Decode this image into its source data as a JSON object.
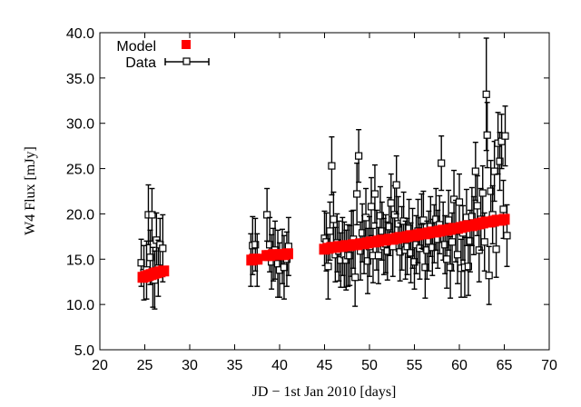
{
  "chart_data": {
    "type": "scatter",
    "title": "",
    "xlabel": "JD − 1st Jan 2010 [days]",
    "ylabel": "W4 Flux [mJy]",
    "xlim": [
      20,
      70
    ],
    "ylim": [
      5.0,
      40.0
    ],
    "x_ticks": [
      "20",
      "25",
      "30",
      "35",
      "40",
      "45",
      "50",
      "55",
      "60",
      "65",
      "70"
    ],
    "y_ticks": [
      "5.0",
      "10.0",
      "15.0",
      "20.0",
      "25.0",
      "30.0",
      "35.0",
      "40.0"
    ],
    "grid": false,
    "legend_position": "top-left",
    "series": [
      {
        "name": "Model",
        "marker": "filled-square",
        "color": "#ff0000",
        "points": [
          [
            24.8,
            13.0
          ],
          [
            25.1,
            13.1
          ],
          [
            25.4,
            13.2
          ],
          [
            25.7,
            13.3
          ],
          [
            26.0,
            13.4
          ],
          [
            26.3,
            13.5
          ],
          [
            26.7,
            13.6
          ],
          [
            27.1,
            13.7
          ],
          [
            36.9,
            14.9
          ],
          [
            37.2,
            15.0
          ],
          [
            37.5,
            15.0
          ],
          [
            38.6,
            15.4
          ],
          [
            38.9,
            15.4
          ],
          [
            39.3,
            15.5
          ],
          [
            39.7,
            15.5
          ],
          [
            40.1,
            15.5
          ],
          [
            40.5,
            15.5
          ],
          [
            40.9,
            15.6
          ],
          [
            45.0,
            16.1
          ],
          [
            45.4,
            16.2
          ],
          [
            45.8,
            16.3
          ],
          [
            46.2,
            16.3
          ],
          [
            46.6,
            16.4
          ],
          [
            47.0,
            16.4
          ],
          [
            47.4,
            16.5
          ],
          [
            47.8,
            16.5
          ],
          [
            48.2,
            16.6
          ],
          [
            48.6,
            16.6
          ],
          [
            49.0,
            16.7
          ],
          [
            49.4,
            16.7
          ],
          [
            49.8,
            16.8
          ],
          [
            50.2,
            16.9
          ],
          [
            50.6,
            16.9
          ],
          [
            51.0,
            17.0
          ],
          [
            51.4,
            17.1
          ],
          [
            51.8,
            17.1
          ],
          [
            52.2,
            17.2
          ],
          [
            52.6,
            17.2
          ],
          [
            53.0,
            17.3
          ],
          [
            53.4,
            17.4
          ],
          [
            53.8,
            17.4
          ],
          [
            54.2,
            17.5
          ],
          [
            54.6,
            17.6
          ],
          [
            55.0,
            17.6
          ],
          [
            55.4,
            17.7
          ],
          [
            55.8,
            17.8
          ],
          [
            56.2,
            17.8
          ],
          [
            56.6,
            17.9
          ],
          [
            57.0,
            18.0
          ],
          [
            57.4,
            18.0
          ],
          [
            57.8,
            18.1
          ],
          [
            58.2,
            18.2
          ],
          [
            58.6,
            18.2
          ],
          [
            59.0,
            18.3
          ],
          [
            59.4,
            18.4
          ],
          [
            59.8,
            18.4
          ],
          [
            60.2,
            18.5
          ],
          [
            60.6,
            18.6
          ],
          [
            61.0,
            18.7
          ],
          [
            61.4,
            18.7
          ],
          [
            61.8,
            18.8
          ],
          [
            62.2,
            18.9
          ],
          [
            62.6,
            19.0
          ],
          [
            63.0,
            19.1
          ],
          [
            63.4,
            19.1
          ],
          [
            63.8,
            19.2
          ],
          [
            64.2,
            19.3
          ],
          [
            64.6,
            19.3
          ],
          [
            65.0,
            19.4
          ]
        ]
      },
      {
        "name": "Data",
        "marker": "open-square",
        "color": "#000000",
        "points": [
          [
            24.6,
            14.6,
            2.6
          ],
          [
            24.9,
            13.5,
            3.0
          ],
          [
            25.2,
            13.8,
            3.2
          ],
          [
            25.4,
            19.9,
            3.3
          ],
          [
            25.6,
            15.2,
            3.0
          ],
          [
            25.8,
            19.9,
            2.9
          ],
          [
            25.9,
            13.0,
            3.3
          ],
          [
            26.1,
            12.7,
            3.2
          ],
          [
            26.3,
            17.1,
            3.0
          ],
          [
            26.5,
            14.0,
            3.1
          ],
          [
            26.7,
            16.6,
            2.9
          ],
          [
            27.0,
            16.2,
            3.7
          ],
          [
            36.8,
            14.9,
            2.9
          ],
          [
            37.0,
            16.5,
            3.2
          ],
          [
            37.3,
            16.6,
            2.9
          ],
          [
            37.5,
            14.9,
            2.9
          ],
          [
            38.6,
            19.9,
            2.9
          ],
          [
            38.9,
            16.6,
            3.0
          ],
          [
            39.1,
            14.7,
            3.0
          ],
          [
            39.3,
            15.5,
            2.9
          ],
          [
            39.5,
            16.0,
            3.2
          ],
          [
            39.8,
            14.5,
            3.7
          ],
          [
            40.0,
            13.8,
            3.0
          ],
          [
            40.3,
            15.3,
            3.0
          ],
          [
            40.5,
            14.1,
            3.5
          ],
          [
            40.8,
            15.0,
            3.0
          ],
          [
            41.0,
            16.4,
            3.2
          ],
          [
            45.0,
            17.3,
            3.0
          ],
          [
            45.2,
            16.9,
            3.2
          ],
          [
            45.4,
            14.2,
            3.6
          ],
          [
            45.6,
            18.1,
            3.2
          ],
          [
            45.8,
            25.3,
            3.2
          ],
          [
            46.0,
            19.4,
            3.0
          ],
          [
            46.2,
            15.5,
            3.0
          ],
          [
            46.4,
            16.8,
            3.2
          ],
          [
            46.6,
            15.9,
            3.3
          ],
          [
            46.8,
            14.9,
            3.0
          ],
          [
            47.0,
            16.4,
            3.2
          ],
          [
            47.2,
            15.5,
            3.6
          ],
          [
            47.4,
            14.9,
            3.3
          ],
          [
            47.6,
            15.4,
            3.4
          ],
          [
            47.8,
            15.4,
            3.3
          ],
          [
            48.0,
            16.7,
            3.6
          ],
          [
            48.2,
            17.2,
            3.2
          ],
          [
            48.4,
            13.0,
            3.2
          ],
          [
            48.6,
            22.2,
            3.4
          ],
          [
            48.8,
            26.4,
            2.9
          ],
          [
            49.0,
            15.9,
            3.2
          ],
          [
            49.2,
            17.9,
            3.2
          ],
          [
            49.4,
            16.6,
            3.2
          ],
          [
            49.6,
            19.6,
            3.2
          ],
          [
            49.8,
            14.8,
            3.6
          ],
          [
            50.0,
            16.4,
            3.3
          ],
          [
            50.2,
            20.8,
            3.2
          ],
          [
            50.4,
            15.4,
            3.0
          ],
          [
            50.6,
            22.2,
            3.2
          ],
          [
            50.8,
            17.1,
            3.3
          ],
          [
            51.0,
            15.4,
            3.1
          ],
          [
            51.2,
            19.8,
            3.2
          ],
          [
            51.4,
            18.1,
            3.2
          ],
          [
            51.6,
            16.4,
            3.1
          ],
          [
            51.8,
            16.7,
            3.2
          ],
          [
            52.0,
            15.9,
            3.2
          ],
          [
            52.2,
            18.6,
            3.2
          ],
          [
            52.4,
            21.2,
            3.2
          ],
          [
            52.6,
            16.4,
            3.3
          ],
          [
            52.8,
            19.9,
            3.2
          ],
          [
            53.0,
            23.2,
            3.2
          ],
          [
            53.2,
            18.9,
            3.0
          ],
          [
            53.4,
            15.8,
            3.2
          ],
          [
            53.6,
            17.3,
            3.5
          ],
          [
            53.8,
            19.2,
            3.2
          ],
          [
            54.0,
            16.0,
            3.2
          ],
          [
            54.2,
            16.4,
            3.1
          ],
          [
            54.4,
            18.4,
            3.2
          ],
          [
            54.6,
            15.7,
            3.3
          ],
          [
            54.8,
            17.3,
            3.3
          ],
          [
            55.0,
            14.7,
            3.0
          ],
          [
            55.2,
            16.6,
            3.2
          ],
          [
            55.4,
            18.1,
            3.5
          ],
          [
            55.6,
            16.2,
            3.4
          ],
          [
            55.8,
            19.2,
            3.0
          ],
          [
            56.0,
            19.3,
            3.2
          ],
          [
            56.2,
            14.1,
            3.4
          ],
          [
            56.4,
            16.0,
            3.2
          ],
          [
            56.6,
            17.0,
            3.3
          ],
          [
            56.8,
            18.6,
            3.3
          ],
          [
            57.0,
            16.3,
            3.1
          ],
          [
            57.2,
            17.8,
            3.2
          ],
          [
            57.4,
            19.4,
            3.4
          ],
          [
            57.6,
            17.2,
            3.2
          ],
          [
            57.8,
            18.8,
            3.2
          ],
          [
            58.0,
            25.6,
            3.0
          ],
          [
            58.2,
            18.1,
            3.2
          ],
          [
            58.4,
            16.6,
            3.2
          ],
          [
            58.6,
            15.0,
            3.2
          ],
          [
            58.8,
            19.3,
            3.3
          ],
          [
            59.0,
            14.1,
            3.4
          ],
          [
            59.2,
            16.9,
            3.2
          ],
          [
            59.4,
            21.6,
            3.2
          ],
          [
            59.6,
            18.1,
            3.4
          ],
          [
            59.8,
            15.5,
            3.2
          ],
          [
            60.0,
            21.3,
            3.1
          ],
          [
            60.2,
            14.0,
            3.2
          ],
          [
            60.4,
            17.9,
            3.0
          ],
          [
            60.6,
            14.1,
            3.3
          ],
          [
            60.8,
            19.6,
            3.1
          ],
          [
            61.0,
            14.2,
            3.2
          ],
          [
            61.2,
            17.0,
            3.4
          ],
          [
            61.4,
            19.7,
            3.2
          ],
          [
            61.6,
            18.7,
            3.2
          ],
          [
            61.8,
            24.7,
            3.2
          ],
          [
            62.0,
            20.9,
            3.3
          ],
          [
            62.2,
            16.0,
            3.5
          ],
          [
            62.4,
            19.4,
            3.4
          ],
          [
            62.6,
            22.3,
            3.0
          ],
          [
            62.8,
            16.9,
            3.2
          ],
          [
            63.0,
            33.2,
            6.2
          ],
          [
            63.1,
            28.7,
            3.6
          ],
          [
            63.3,
            13.2,
            3.2
          ],
          [
            63.5,
            22.5,
            3.4
          ],
          [
            63.7,
            19.9,
            3.2
          ],
          [
            63.9,
            24.7,
            3.3
          ],
          [
            64.1,
            16.1,
            3.1
          ],
          [
            64.3,
            27.8,
            3.4
          ],
          [
            64.5,
            25.8,
            3.2
          ],
          [
            64.7,
            28.0,
            3.0
          ],
          [
            64.9,
            20.5,
            3.2
          ],
          [
            65.1,
            28.6,
            3.3
          ],
          [
            65.3,
            17.6,
            3.4
          ]
        ]
      }
    ]
  }
}
